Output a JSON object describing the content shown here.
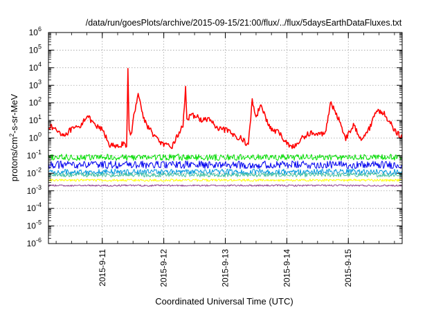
{
  "chart_data": {
    "type": "line",
    "title": "/data/run/goesPlots/archive/2015-09-15/21:00/flux/../flux/5daysEarthDataFluxes.txt",
    "xlabel": "Coordinated Universal Time (UTC)",
    "ylabel": "protons/cm2-s-sr-MeV",
    "ylabel_parts": {
      "base": "protons/cm",
      "sup": "2",
      "rest": "-s-sr-MeV"
    },
    "yscale": "log",
    "ylim": [
      1e-06,
      1000000.0
    ],
    "ytick_bases": [
      "10",
      "10",
      "10",
      "10",
      "10",
      "10",
      "10",
      "10",
      "10",
      "10",
      "10",
      "10",
      "10"
    ],
    "ytick_exponents": [
      "-6",
      "-5",
      "-4",
      "-3",
      "-2",
      "-1",
      "0",
      "1",
      "2",
      "3",
      "4",
      "5",
      "6"
    ],
    "xlim": [
      "2015-09-10T03:00",
      "2015-09-15T21:00"
    ],
    "xticks": [
      "2015-9-11",
      "2015-9-12",
      "2015-9-13",
      "2015-9-14",
      "2015-9-15"
    ],
    "grid": true,
    "legend": "none",
    "series": [
      {
        "color": "#ff0000",
        "x": [
          "2015-09-10T03:00",
          "2015-09-10T06:00",
          "2015-09-10T09:00",
          "2015-09-10T12:00",
          "2015-09-10T15:00",
          "2015-09-10T18:00",
          "2015-09-10T21:00",
          "2015-09-11T00:00",
          "2015-09-11T03:00",
          "2015-09-11T06:00",
          "2015-09-11T08:00",
          "2015-09-11T09:30",
          "2015-09-11T10:00",
          "2015-09-11T10:30",
          "2015-09-11T11:30",
          "2015-09-11T12:00",
          "2015-09-11T14:00",
          "2015-09-11T16:00",
          "2015-09-11T18:00",
          "2015-09-11T21:00",
          "2015-09-12T00:00",
          "2015-09-12T03:00",
          "2015-09-12T06:00",
          "2015-09-12T07:30",
          "2015-09-12T08:30",
          "2015-09-12T09:00",
          "2015-09-12T10:00",
          "2015-09-12T12:00",
          "2015-09-12T15:00",
          "2015-09-12T18:00",
          "2015-09-12T21:00",
          "2015-09-13T00:00",
          "2015-09-13T03:00",
          "2015-09-13T06:00",
          "2015-09-13T09:00",
          "2015-09-13T10:30",
          "2015-09-13T12:00",
          "2015-09-13T14:00",
          "2015-09-13T16:00",
          "2015-09-13T18:00",
          "2015-09-13T21:00",
          "2015-09-14T00:00",
          "2015-09-14T03:00",
          "2015-09-14T06:00",
          "2015-09-14T09:00",
          "2015-09-14T12:00",
          "2015-09-14T15:00",
          "2015-09-14T17:00",
          "2015-09-14T20:00",
          "2015-09-14T23:00",
          "2015-09-15T02:00",
          "2015-09-15T05:00",
          "2015-09-15T08:00",
          "2015-09-15T11:00",
          "2015-09-15T14:00",
          "2015-09-15T17:00",
          "2015-09-15T19:00",
          "2015-09-15T21:00"
        ],
        "y": [
          5,
          3,
          1.5,
          3,
          4,
          20,
          5,
          3,
          0.4,
          0.3,
          0.5,
          0.25,
          8000,
          3,
          1.5,
          10,
          400,
          15,
          4,
          1,
          0.4,
          0.3,
          2,
          5,
          1000,
          10,
          15,
          20,
          10,
          12,
          3,
          3,
          1.5,
          1,
          0.4,
          150,
          15,
          100,
          10,
          3,
          2,
          0.5,
          0.3,
          1,
          2,
          1.5,
          2,
          100,
          15,
          1,
          5,
          1,
          3,
          40,
          25,
          5,
          2,
          1
        ]
      },
      {
        "color": "#00dd00",
        "x": [
          "2015-09-10T03:00",
          "2015-09-15T21:00"
        ],
        "y": [
          0.08,
          0.08
        ]
      },
      {
        "color": "#0000ee",
        "x": [
          "2015-09-10T03:00",
          "2015-09-15T21:00"
        ],
        "y": [
          0.03,
          0.03
        ]
      },
      {
        "color": "#0099dd",
        "x": [
          "2015-09-10T03:00",
          "2015-09-15T21:00"
        ],
        "y": [
          0.012,
          0.012
        ]
      },
      {
        "color": "#40c0a0",
        "x": [
          "2015-09-10T03:00",
          "2015-09-15T21:00"
        ],
        "y": [
          0.008,
          0.008
        ]
      },
      {
        "color": "#ffff00",
        "x": [
          "2015-09-10T03:00",
          "2015-09-15T21:00"
        ],
        "y": [
          0.004,
          0.004
        ]
      },
      {
        "color": "#904090",
        "x": [
          "2015-09-10T03:00",
          "2015-09-15T21:00"
        ],
        "y": [
          0.002,
          0.002
        ]
      }
    ]
  }
}
